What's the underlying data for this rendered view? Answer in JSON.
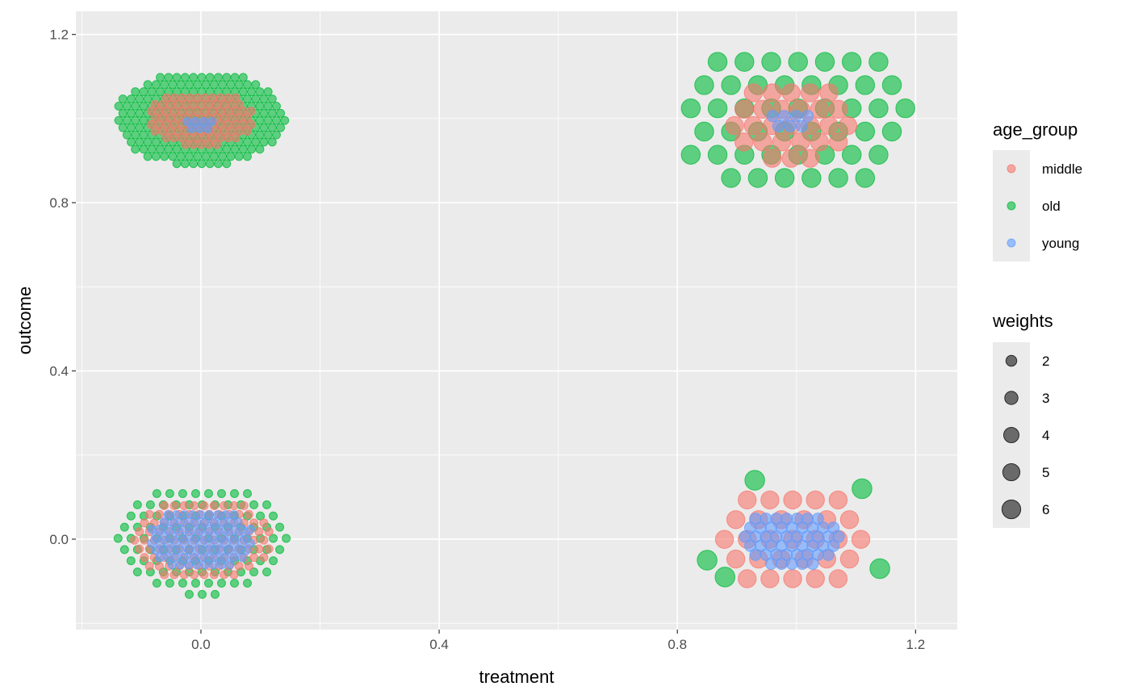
{
  "chart_data": {
    "type": "scatter",
    "xlabel": "treatment",
    "ylabel": "outcome",
    "xlim": [
      -0.21,
      1.27
    ],
    "ylim": [
      -0.215,
      1.255
    ],
    "x_ticks": [
      "0.0",
      "0.4",
      "0.8",
      "1.2"
    ],
    "x_tick_values": [
      0,
      0.4,
      0.8,
      1.2
    ],
    "y_ticks": [
      "0.0",
      "0.4",
      "0.8",
      "1.2"
    ],
    "y_tick_values": [
      0,
      0.4,
      0.8,
      1.2
    ],
    "grid": true,
    "legend_placement": "right",
    "color_legend": {
      "title": "age_group",
      "entries": [
        {
          "label": "middle",
          "color": "#F8766D"
        },
        {
          "label": "old",
          "color": "#00BA38"
        },
        {
          "label": "young",
          "color": "#619CFF"
        }
      ]
    },
    "size_legend": {
      "title": "weights",
      "entries": [
        {
          "label": "2",
          "value": 2
        },
        {
          "label": "3",
          "value": 3
        },
        {
          "label": "4",
          "value": 4
        },
        {
          "label": "5",
          "value": 5
        },
        {
          "label": "6",
          "value": 6
        }
      ]
    },
    "clusters": [
      {
        "series": "old",
        "cx": 0.0,
        "cy": 1.0,
        "rx": 0.145,
        "ry": 0.115,
        "weight": 1.0,
        "count": 220
      },
      {
        "series": "middle",
        "cx": 0.0,
        "cy": 1.0,
        "rx": 0.09,
        "ry": 0.065,
        "weight": 1.0,
        "count": 90
      },
      {
        "series": "young",
        "cx": 0.0,
        "cy": 0.99,
        "rx": 0.03,
        "ry": 0.02,
        "weight": 1.0,
        "count": 8
      },
      {
        "series": "old",
        "cx": 0.0,
        "cy": 0.0,
        "rx": 0.15,
        "ry": 0.135,
        "weight": 1.0,
        "count": 110
      },
      {
        "series": "middle",
        "cx": 0.0,
        "cy": 0.0,
        "rx": 0.12,
        "ry": 0.1,
        "weight": 1.0,
        "count": 110
      },
      {
        "series": "young",
        "cx": 0.0,
        "cy": 0.0,
        "rx": 0.09,
        "ry": 0.075,
        "weight": 1.0,
        "count": 90
      },
      {
        "series": "old",
        "cx": 1.0,
        "cy": 1.0,
        "rx": 0.2,
        "ry": 0.19,
        "weight": 5.5,
        "count": 48
      },
      {
        "series": "middle",
        "cx": 0.99,
        "cy": 1.0,
        "rx": 0.11,
        "ry": 0.1,
        "weight": 5.0,
        "count": 28
      },
      {
        "series": "young",
        "cx": 0.99,
        "cy": 1.0,
        "rx": 0.04,
        "ry": 0.03,
        "weight": 2.0,
        "count": 8
      },
      {
        "series": "middle",
        "cx": 0.99,
        "cy": 0.0,
        "rx": 0.13,
        "ry": 0.14,
        "weight": 5.0,
        "count": 32
      },
      {
        "series": "young",
        "cx": 0.99,
        "cy": 0.0,
        "rx": 0.085,
        "ry": 0.07,
        "weight": 2.0,
        "count": 50
      }
    ],
    "points": [
      {
        "series": "old",
        "x": 0.93,
        "y": 0.14,
        "weight": 6
      },
      {
        "series": "old",
        "x": 1.11,
        "y": 0.12,
        "weight": 6
      },
      {
        "series": "old",
        "x": 0.85,
        "y": -0.05,
        "weight": 6
      },
      {
        "series": "old",
        "x": 0.88,
        "y": -0.09,
        "weight": 6
      },
      {
        "series": "old",
        "x": 1.14,
        "y": -0.07,
        "weight": 6
      }
    ]
  }
}
